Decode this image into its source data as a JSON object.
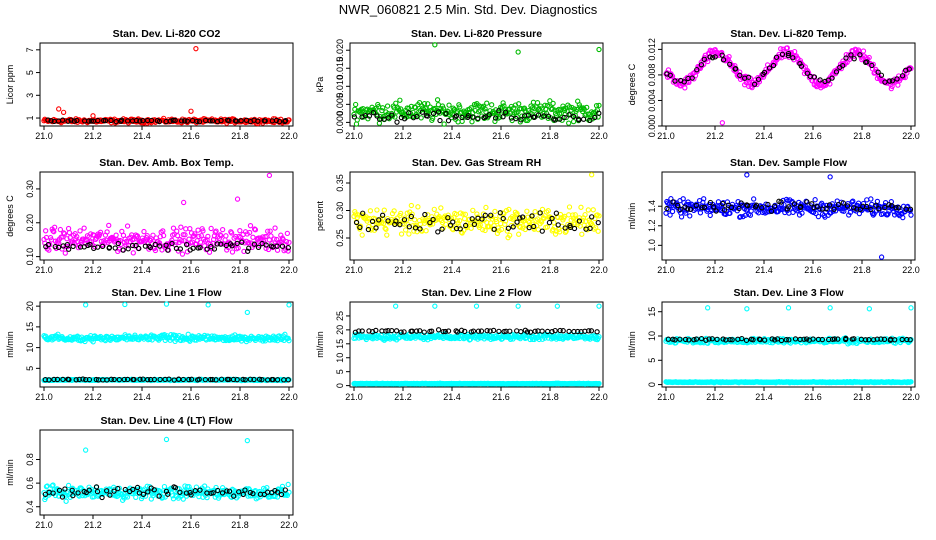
{
  "title": "NWR_060821  2.5 Min. Std. Dev. Diagnostics",
  "chart_data": [
    {
      "type": "scatter",
      "title": "Stan. Dev. Li-820 CO2",
      "ylabel": "Licor ppm",
      "xlim": [
        21.0,
        22.0
      ],
      "ylim": [
        0.3,
        7.6
      ],
      "xticks": [
        "21.0",
        "21.2",
        "21.4",
        "21.6",
        "21.8",
        "22.0"
      ],
      "yticks": [
        "1",
        "3",
        "5",
        "7"
      ],
      "ytickvals": [
        1,
        3,
        5,
        7
      ],
      "color": "#ff0000",
      "base": 0.75,
      "spread": 0.25,
      "black_base": 0.75,
      "black_spread": 0.12,
      "outliers": [
        [
          21.06,
          1.8
        ],
        [
          21.08,
          1.5
        ],
        [
          21.2,
          1.2
        ],
        [
          21.62,
          7.1
        ],
        [
          21.6,
          1.6
        ]
      ]
    },
    {
      "type": "scatter",
      "title": "Stan. Dev. Li-820 Pressure",
      "ylabel": "kPa",
      "xlim": [
        21.0,
        22.0
      ],
      "ylim": [
        -0.001,
        0.022
      ],
      "xticks": [
        "21.0",
        "21.2",
        "21.4",
        "21.6",
        "21.8",
        "22.0"
      ],
      "yticks": [
        "0.000",
        "0.005",
        "0.010",
        "0.015",
        "0.020"
      ],
      "ytickvals": [
        0,
        0.005,
        0.01,
        0.015,
        0.02
      ],
      "color": "#00bb00",
      "base": 0.003,
      "spread": 0.004,
      "black_base": 0.0015,
      "black_spread": 0.002,
      "outliers": [
        [
          21.33,
          0.0215
        ],
        [
          21.67,
          0.0195
        ],
        [
          22.0,
          0.0202
        ]
      ]
    },
    {
      "type": "scatter",
      "title": "Stan. Dev. Li-820 Temp.",
      "ylabel": "degrees C",
      "xlim": [
        21.0,
        22.0
      ],
      "ylim": [
        0.0,
        0.013
      ],
      "xticks": [
        "21.0",
        "21.2",
        "21.4",
        "21.6",
        "21.8",
        "22.0"
      ],
      "yticks": [
        "0.000",
        "0.004",
        "0.008",
        "0.012"
      ],
      "ytickvals": [
        0,
        0.004,
        0.008,
        0.012
      ],
      "color": "#ff00ff",
      "base": 0.009,
      "spread": 0.003,
      "black_base": 0.009,
      "black_spread": 0.002,
      "outliers": [
        [
          21.23,
          0.0005
        ]
      ]
    },
    {
      "type": "scatter",
      "title": "Stan. Dev. Amb. Box Temp.",
      "ylabel": "degrees C",
      "xlim": [
        21.0,
        22.0
      ],
      "ylim": [
        0.09,
        0.35
      ],
      "xticks": [
        "21.0",
        "21.2",
        "21.4",
        "21.6",
        "21.8",
        "22.0"
      ],
      "yticks": [
        "0.10",
        "0.20",
        "0.30"
      ],
      "ytickvals": [
        0.1,
        0.2,
        0.3
      ],
      "color": "#ff00ff",
      "base": 0.15,
      "spread": 0.05,
      "black_base": 0.13,
      "black_spread": 0.02,
      "outliers": [
        [
          21.92,
          0.34
        ],
        [
          21.79,
          0.27
        ],
        [
          21.57,
          0.26
        ]
      ]
    },
    {
      "type": "scatter",
      "title": "Stan. Dev. Gas Stream RH",
      "ylabel": "percent",
      "xlim": [
        21.0,
        22.0
      ],
      "ylim": [
        0.21,
        0.37
      ],
      "xticks": [
        "21.0",
        "21.2",
        "21.4",
        "21.6",
        "21.8",
        "22.0"
      ],
      "yticks": [
        "0.25",
        "0.30",
        "0.35"
      ],
      "ytickvals": [
        0.25,
        0.3,
        0.35
      ],
      "color": "#ffff00",
      "base": 0.28,
      "spread": 0.035,
      "black_base": 0.28,
      "black_spread": 0.03,
      "outliers": [
        [
          21.97,
          0.365
        ]
      ]
    },
    {
      "type": "scatter",
      "title": "Stan. Dev. Sample Flow",
      "ylabel": "ml/min",
      "xlim": [
        21.0,
        22.0
      ],
      "ylim": [
        0.85,
        1.75
      ],
      "xticks": [
        "21.0",
        "21.2",
        "21.4",
        "21.6",
        "21.8",
        "22.0"
      ],
      "yticks": [
        "1.0",
        "1.2",
        "1.4"
      ],
      "ytickvals": [
        1.0,
        1.2,
        1.4
      ],
      "color": "#0000ff",
      "base": 1.38,
      "spread": 0.12,
      "black_base": 1.4,
      "black_spread": 0.07,
      "outliers": [
        [
          21.33,
          1.72
        ],
        [
          21.88,
          0.88
        ],
        [
          21.67,
          1.7
        ]
      ]
    },
    {
      "type": "scatter",
      "title": "Stan. Dev. Line 1 Flow",
      "ylabel": "ml/min",
      "xlim": [
        21.0,
        22.0
      ],
      "ylim": [
        0.5,
        21.0
      ],
      "xticks": [
        "21.0",
        "21.2",
        "21.4",
        "21.6",
        "21.8",
        "22.0"
      ],
      "yticks": [
        "5",
        "10",
        "15",
        "20"
      ],
      "ytickvals": [
        5,
        10,
        15,
        20
      ],
      "color": "#00ffff",
      "base": 12.3,
      "spread": 1.1,
      "black_base": 2.3,
      "black_spread": 0.2,
      "low_base": 2.2,
      "low_spread": 0.2,
      "outliers": [
        [
          21.17,
          20.3
        ],
        [
          21.33,
          20.4
        ],
        [
          21.5,
          20.5
        ],
        [
          21.67,
          20.3
        ],
        [
          21.83,
          18.5
        ],
        [
          22.0,
          20.3
        ]
      ]
    },
    {
      "type": "scatter",
      "title": "Stan. Dev. Line 2 Flow",
      "ylabel": "ml/min",
      "xlim": [
        21.0,
        22.0
      ],
      "ylim": [
        -0.5,
        30.0
      ],
      "xticks": [
        "21.0",
        "21.2",
        "21.4",
        "21.6",
        "21.8",
        "22.0"
      ],
      "yticks": [
        "0",
        "5",
        "10",
        "15",
        "20",
        "25"
      ],
      "ytickvals": [
        0,
        5,
        10,
        15,
        20,
        25
      ],
      "color": "#00ffff",
      "base": 17.5,
      "spread": 1.5,
      "black_base": 19.5,
      "black_spread": 0.6,
      "low_base": 0.7,
      "low_spread": 0.2,
      "outliers": [
        [
          21.17,
          28.5
        ],
        [
          21.33,
          28.5
        ],
        [
          21.5,
          28.5
        ],
        [
          21.67,
          28.5
        ],
        [
          21.83,
          28.5
        ],
        [
          22.0,
          28.5
        ]
      ]
    },
    {
      "type": "scatter",
      "title": "Stan. Dev. Line 3 Flow",
      "ylabel": "ml/min",
      "xlim": [
        21.0,
        22.0
      ],
      "ylim": [
        -0.5,
        17.0
      ],
      "xticks": [
        "21.0",
        "21.2",
        "21.4",
        "21.6",
        "21.8",
        "22.0"
      ],
      "yticks": [
        "0",
        "5",
        "10",
        "15"
      ],
      "ytickvals": [
        0,
        5,
        10,
        15
      ],
      "color": "#00ffff",
      "base": 9.0,
      "spread": 0.7,
      "black_base": 9.3,
      "black_spread": 0.3,
      "low_base": 0.5,
      "low_spread": 0.15,
      "outliers": [
        [
          21.17,
          15.8
        ],
        [
          21.33,
          15.6
        ],
        [
          21.5,
          15.8
        ],
        [
          21.67,
          15.8
        ],
        [
          21.83,
          15.6
        ],
        [
          22.0,
          15.8
        ]
      ]
    },
    {
      "type": "scatter",
      "title": "Stan. Dev. Line 4 (LT) Flow",
      "ylabel": "ml/min",
      "xlim": [
        21.0,
        22.0
      ],
      "ylim": [
        0.33,
        1.05
      ],
      "xticks": [
        "21.0",
        "21.2",
        "21.4",
        "21.6",
        "21.8",
        "22.0"
      ],
      "yticks": [
        "0.4",
        "0.6",
        "0.8"
      ],
      "ytickvals": [
        0.4,
        0.6,
        0.8
      ],
      "color": "#00ffff",
      "base": 0.52,
      "spread": 0.08,
      "black_base": 0.52,
      "black_spread": 0.06,
      "outliers": [
        [
          21.17,
          0.88
        ],
        [
          21.5,
          0.97
        ],
        [
          21.83,
          0.96
        ]
      ]
    }
  ]
}
